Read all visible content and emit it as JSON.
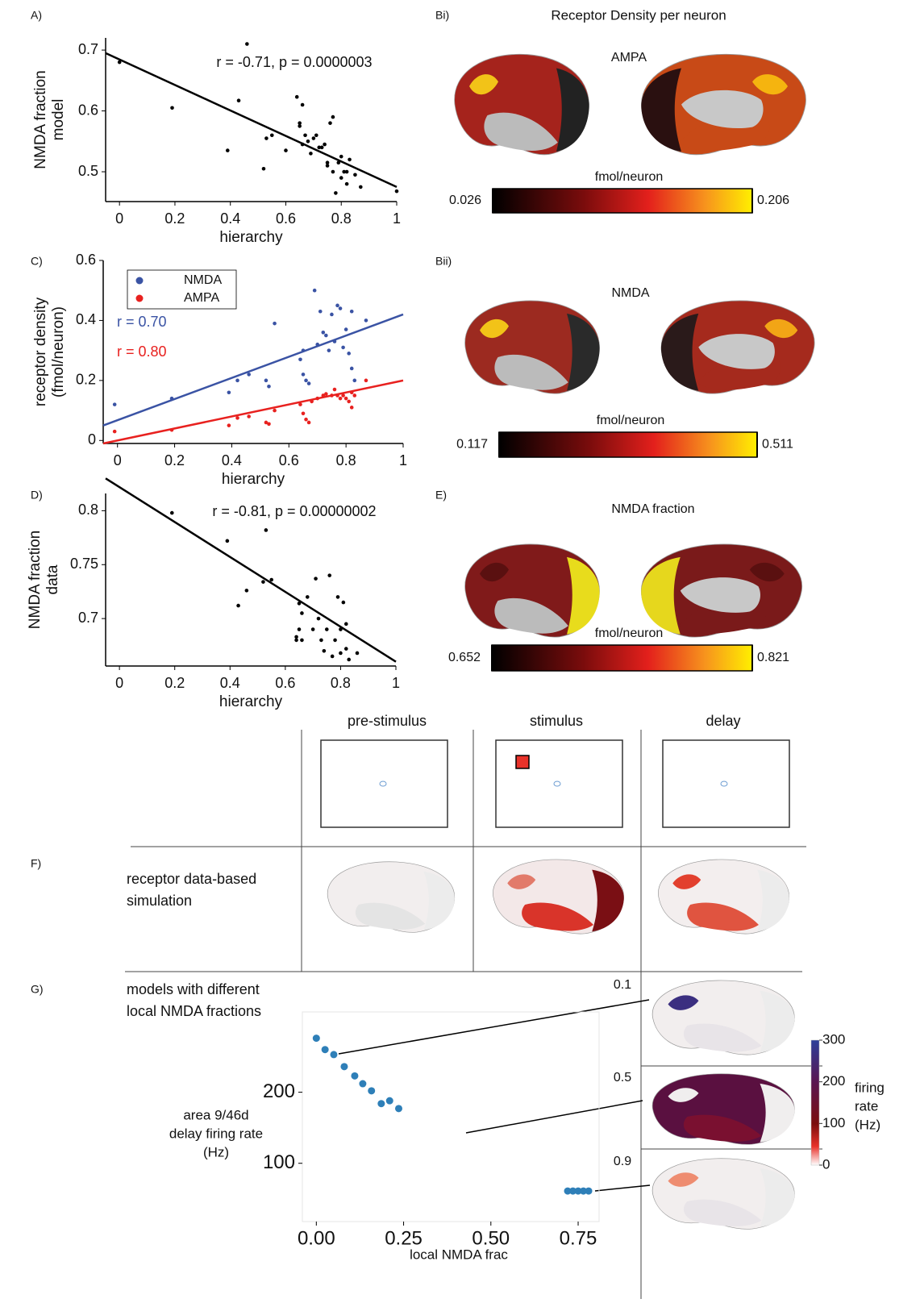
{
  "chart_data": [
    {
      "type": "scatter",
      "panel": "A)",
      "color": "#000000",
      "x": [
        0.0,
        0.19,
        0.39,
        0.43,
        0.46,
        0.52,
        0.53,
        0.55,
        0.6,
        0.64,
        0.65,
        0.65,
        0.66,
        0.66,
        0.67,
        0.68,
        0.69,
        0.7,
        0.71,
        0.72,
        0.73,
        0.74,
        0.75,
        0.75,
        0.76,
        0.77,
        0.77,
        0.78,
        0.79,
        0.8,
        0.8,
        0.81,
        0.82,
        0.82,
        0.83,
        0.85,
        0.87,
        1.0
      ],
      "values": [
        0.68,
        0.605,
        0.535,
        0.617,
        0.71,
        0.505,
        0.555,
        0.56,
        0.535,
        0.623,
        0.58,
        0.575,
        0.61,
        0.545,
        0.56,
        0.55,
        0.53,
        0.555,
        0.56,
        0.54,
        0.54,
        0.545,
        0.515,
        0.51,
        0.58,
        0.59,
        0.5,
        0.465,
        0.515,
        0.525,
        0.49,
        0.5,
        0.48,
        0.5,
        0.52,
        0.495,
        0.475,
        0.468
      ],
      "fit": {
        "x": [
          -0.05,
          1
        ],
        "values": [
          0.695,
          0.475
        ]
      },
      "xlim": [
        -0.05,
        1
      ],
      "ylim": [
        0.451,
        0.72
      ],
      "xticks": [
        0,
        0.2,
        0.4,
        0.6,
        0.8,
        1
      ],
      "yticks": [
        0.5,
        0.6,
        0.7
      ],
      "xlabel": "hierarchy",
      "ylabel": [
        "NMDA fraction",
        "model"
      ],
      "annotation": "r = -0.71, p = 0.0000003"
    },
    {
      "type": "scatter",
      "panel": "C)",
      "legend": "upper left",
      "series": [
        {
          "name": "NMDA",
          "color": "#3a53a4",
          "annotation": "r = 0.70",
          "x": [
            -0.01,
            0.19,
            0.39,
            0.42,
            0.46,
            0.52,
            0.55,
            0.53,
            0.64,
            0.65,
            0.65,
            0.66,
            0.67,
            0.69,
            0.7,
            0.71,
            0.72,
            0.73,
            0.74,
            0.75,
            0.76,
            0.77,
            0.78,
            0.79,
            0.8,
            0.81,
            0.82,
            0.82,
            0.83,
            0.87
          ],
          "values": [
            0.12,
            0.14,
            0.16,
            0.2,
            0.22,
            0.2,
            0.39,
            0.18,
            0.27,
            0.22,
            0.3,
            0.2,
            0.19,
            0.5,
            0.32,
            0.43,
            0.36,
            0.35,
            0.3,
            0.42,
            0.33,
            0.45,
            0.44,
            0.31,
            0.37,
            0.29,
            0.43,
            0.24,
            0.2,
            0.4
          ],
          "fit": {
            "x": [
              -0.05,
              1
            ],
            "values": [
              0.05,
              0.42
            ]
          }
        },
        {
          "name": "AMPA",
          "color": "#e8211f",
          "annotation": "r = 0.80",
          "x": [
            -0.01,
            0.19,
            0.39,
            0.42,
            0.46,
            0.52,
            0.53,
            0.55,
            0.64,
            0.65,
            0.66,
            0.67,
            0.68,
            0.7,
            0.72,
            0.73,
            0.75,
            0.76,
            0.77,
            0.78,
            0.79,
            0.8,
            0.81,
            0.82,
            0.82,
            0.83,
            0.87
          ],
          "values": [
            0.03,
            0.035,
            0.05,
            0.075,
            0.08,
            0.06,
            0.055,
            0.1,
            0.12,
            0.09,
            0.07,
            0.06,
            0.13,
            0.14,
            0.15,
            0.155,
            0.15,
            0.17,
            0.15,
            0.14,
            0.15,
            0.14,
            0.13,
            0.16,
            0.11,
            0.15,
            0.2
          ],
          "fit": {
            "x": [
              -0.05,
              1
            ],
            "values": [
              -0.01,
              0.2
            ]
          }
        }
      ],
      "xlim": [
        -0.05,
        1
      ],
      "ylim": [
        -0.01,
        0.6
      ],
      "xticks": [
        0,
        0.2,
        0.4,
        0.6,
        0.8,
        1
      ],
      "yticks": [
        0,
        0.2,
        0.4,
        0.6
      ],
      "xlabel": "hierarchy",
      "ylabel": [
        "receptor density",
        "(fmol/neuron)"
      ]
    },
    {
      "type": "scatter",
      "panel": "D)",
      "color": "#000000",
      "x": [
        0.19,
        0.39,
        0.43,
        0.46,
        0.52,
        0.53,
        0.55,
        0.64,
        0.64,
        0.65,
        0.65,
        0.66,
        0.66,
        0.68,
        0.7,
        0.71,
        0.72,
        0.73,
        0.74,
        0.75,
        0.76,
        0.77,
        0.78,
        0.79,
        0.8,
        0.8,
        0.81,
        0.82,
        0.82,
        0.83,
        0.86
      ],
      "values": [
        0.798,
        0.772,
        0.712,
        0.726,
        0.734,
        0.782,
        0.736,
        0.68,
        0.683,
        0.714,
        0.69,
        0.68,
        0.705,
        0.72,
        0.69,
        0.737,
        0.7,
        0.68,
        0.67,
        0.69,
        0.74,
        0.665,
        0.68,
        0.72,
        0.69,
        0.668,
        0.715,
        0.695,
        0.672,
        0.662,
        0.668
      ],
      "fit": {
        "x": [
          -0.05,
          1
        ],
        "values": [
          0.83,
          0.66
        ]
      },
      "xlim": [
        -0.05,
        1
      ],
      "ylim": [
        0.656,
        0.816
      ],
      "xticks": [
        0,
        0.2,
        0.4,
        0.6,
        0.8,
        1
      ],
      "yticks": [
        0.7,
        0.75,
        0.8
      ],
      "xlabel": "hierarchy",
      "ylabel": [
        "NMDA fraction",
        "data"
      ],
      "annotation": "r = -0.81, p = 0.00000002"
    },
    {
      "type": "scatter",
      "color": "#2e7fb8",
      "x": [
        0.0,
        0.025,
        0.05,
        0.08,
        0.11,
        0.133,
        0.158,
        0.186,
        0.21,
        0.236,
        0.72,
        0.735,
        0.75,
        0.765,
        0.78
      ],
      "values": [
        276,
        260,
        253,
        236,
        223,
        212,
        202,
        184,
        188,
        177,
        61,
        61,
        61,
        61,
        61
      ],
      "xlim": [
        -0.04,
        0.81
      ],
      "ylim": [
        18,
        313
      ],
      "xticks": [
        {
          "value": 0,
          "label": "0.00"
        },
        {
          "value": 0.25,
          "label": "0.25"
        },
        {
          "value": 0.5,
          "label": "0.50"
        },
        {
          "value": 0.75,
          "label": "0.75"
        }
      ],
      "yticks": [
        100,
        200
      ],
      "xlabel": "local NMDA frac",
      "ylabel": [
        "area 9/46d",
        "delay firing rate",
        "(Hz)"
      ]
    }
  ],
  "brain_panels": [
    {
      "panel": "Bi)",
      "title": "Receptor Density per neuron",
      "subtitle": "AMPA",
      "colorbar": {
        "label": "fmol/neuron",
        "min": 0.026,
        "max": 0.206
      }
    },
    {
      "panel": "Bii)",
      "subtitle": "NMDA",
      "colorbar": {
        "label": "fmol/neuron",
        "min": 0.117,
        "max": 0.511
      }
    },
    {
      "panel": "E)",
      "subtitle": "NMDA fraction",
      "colorbar": {
        "label": "fmol/neuron",
        "min": 0.652,
        "max": 0.821
      }
    }
  ],
  "simulation": {
    "panel_f": "F)",
    "panel_g": "G)",
    "columns": [
      "pre-stimulus",
      "stimulus",
      "delay"
    ],
    "rows": [
      [
        "receptor data-based",
        "simulation"
      ],
      [
        "models with different",
        "local NMDA fractions"
      ]
    ],
    "inset_labels": [
      0.1,
      0.5,
      0.9
    ],
    "colorbar": {
      "ticks": [
        0,
        100,
        200,
        300
      ],
      "label": [
        "firing",
        "rate",
        "(Hz)"
      ]
    }
  }
}
